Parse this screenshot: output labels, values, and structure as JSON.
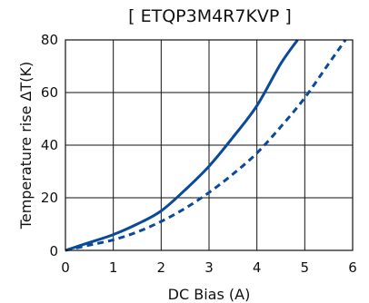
{
  "chart_data": {
    "type": "line",
    "title": "[ ETQP3M4R7KVP ]",
    "xlabel": "DC Bias (A)",
    "ylabel": "Temperature rise ΔT(K)",
    "xlim": [
      0,
      6
    ],
    "ylim": [
      0,
      80
    ],
    "x_ticks": [
      "0",
      "1",
      "2",
      "3",
      "4",
      "5",
      "6"
    ],
    "y_ticks": [
      "0",
      "20",
      "40",
      "60",
      "80"
    ],
    "grid": true,
    "series": [
      {
        "style": "solid",
        "color": "#0a4a9a",
        "x": [
          0,
          0.5,
          1.0,
          1.5,
          2.0,
          2.5,
          3.0,
          3.5,
          4.0,
          4.5,
          4.85
        ],
        "y": [
          0,
          3,
          6,
          10,
          15,
          23,
          32,
          43,
          55,
          71,
          80
        ]
      },
      {
        "style": "dashed",
        "color": "#0a4a9a",
        "x": [
          0,
          0.5,
          1.0,
          1.5,
          2.0,
          2.5,
          3.0,
          3.5,
          4.0,
          4.5,
          5.0,
          5.5,
          5.85
        ],
        "y": [
          0,
          2,
          4,
          7,
          11,
          16,
          22,
          29,
          37,
          47,
          58,
          71,
          80
        ]
      }
    ]
  }
}
